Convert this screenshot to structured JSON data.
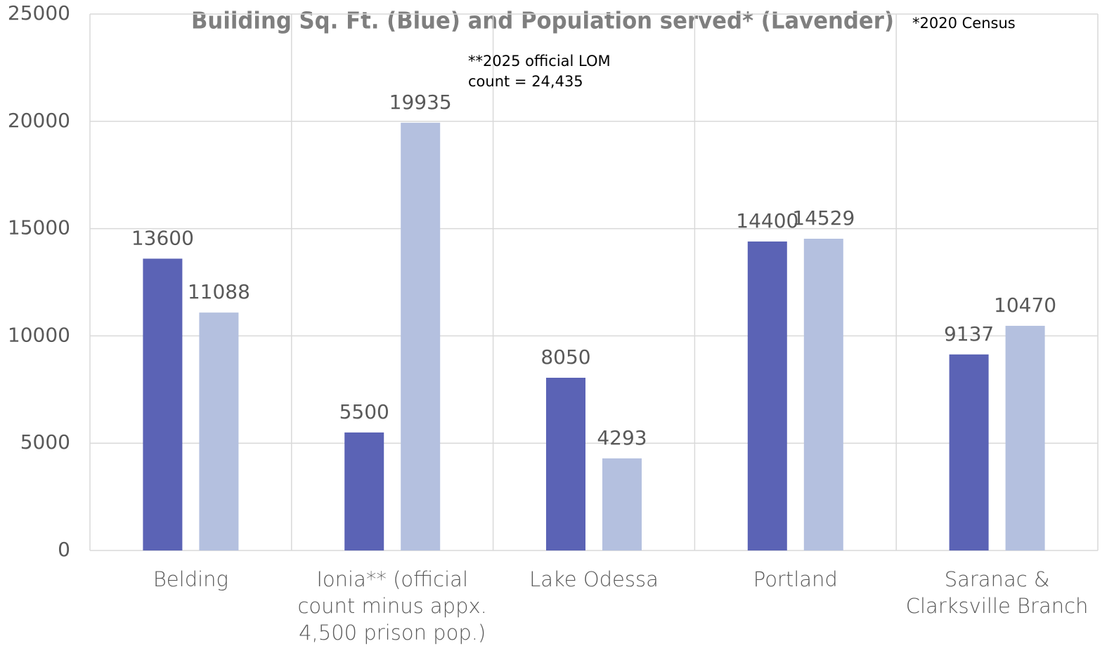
{
  "chart_data": {
    "type": "bar",
    "title": "Building Sq. Ft. (Blue) and Population served* (Lavender)",
    "annotations": [
      "*2020 Census",
      "**2025 official LOM count = 24,435"
    ],
    "categories": [
      "Belding",
      "Ionia** (official count minus appx. 4,500 prison pop.)",
      "Lake Odessa",
      "Portland",
      "Saranac & Clarksville Branch"
    ],
    "series": [
      {
        "color": "#5b63b5",
        "values": [
          13600,
          5500,
          8050,
          14400,
          9137
        ]
      },
      {
        "color": "#b4c0df",
        "values": [
          11088,
          19935,
          4293,
          14529,
          10470
        ]
      }
    ],
    "ylim": [
      0,
      25000
    ],
    "yticks": [
      0,
      5000,
      10000,
      15000,
      20000,
      25000
    ],
    "grid": true
  }
}
